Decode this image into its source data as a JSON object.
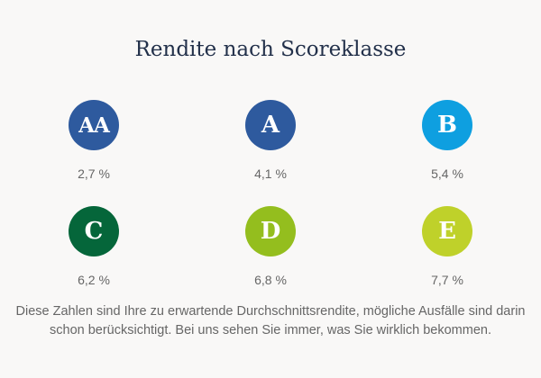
{
  "title": "Rendite nach Scoreklasse",
  "classes": [
    {
      "label": "AA",
      "value": "2,7 %",
      "color": "#2e5a9e"
    },
    {
      "label": "A",
      "value": "4,1 %",
      "color": "#2e5a9e"
    },
    {
      "label": "B",
      "value": "5,4 %",
      "color": "#0e9fe0"
    },
    {
      "label": "C",
      "value": "6,2 %",
      "color": "#05663a"
    },
    {
      "label": "D",
      "value": "6,8 %",
      "color": "#94be1e"
    },
    {
      "label": "E",
      "value": "7,7 %",
      "color": "#bfd12a"
    }
  ],
  "note": {
    "line1": "Diese Zahlen sind Ihre zu erwartende Durchschnittsrendite, mögliche Ausfälle sind darin",
    "line2": "schon berücksichtigt. Bei uns sehen Sie immer, was Sie wirklich bekommen."
  }
}
